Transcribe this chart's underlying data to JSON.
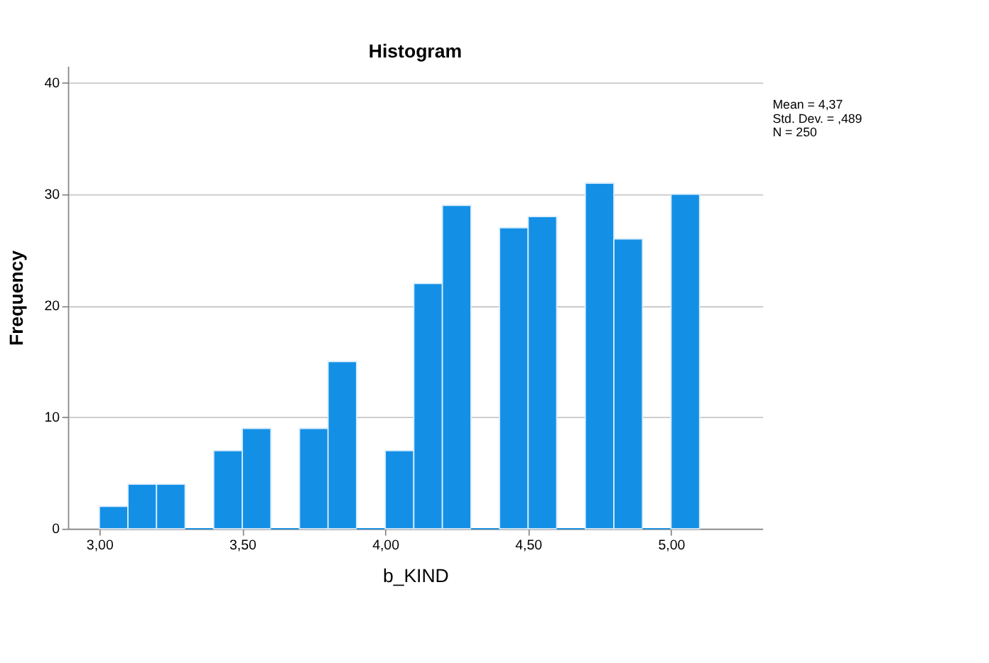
{
  "chart_data": {
    "type": "histogram",
    "title": "Histogram",
    "xlabel": "b_KIND",
    "ylabel": "Frequency",
    "bins": [
      3.0,
      3.1,
      3.2,
      3.3,
      3.4,
      3.5,
      3.6,
      3.7,
      3.8,
      3.9,
      4.0,
      4.1,
      4.2,
      4.3,
      4.4,
      4.5,
      4.6,
      4.7,
      4.8,
      4.9,
      5.0,
      5.1
    ],
    "values": [
      2,
      4,
      4,
      0,
      7,
      9,
      0,
      9,
      15,
      0,
      7,
      22,
      29,
      0,
      27,
      28,
      0,
      31,
      26,
      0,
      30
    ],
    "color": "#1390e6",
    "xlim": [
      2.89,
      5.32
    ],
    "xticks": [
      {
        "value": 3.0,
        "label": "3,00"
      },
      {
        "value": 3.5,
        "label": "3,50"
      },
      {
        "value": 4.0,
        "label": "4,00"
      },
      {
        "value": 4.5,
        "label": "4,50"
      },
      {
        "value": 5.0,
        "label": "5,00"
      }
    ],
    "ylim": [
      0,
      41.5
    ],
    "yticks": [
      0,
      10,
      20,
      30,
      40
    ],
    "grid": "y",
    "annotations": [
      "Mean = 4,37",
      "Std. Dev. = ,489",
      "N = 250"
    ]
  }
}
